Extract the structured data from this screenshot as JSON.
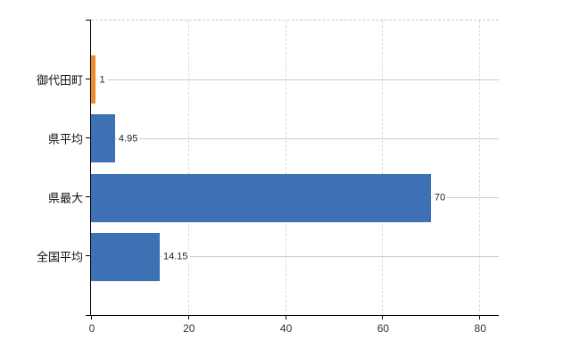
{
  "chart_data": {
    "type": "bar",
    "orientation": "horizontal",
    "title": "",
    "xlabel": "",
    "ylabel": "",
    "categories": [
      "御代田町",
      "県平均",
      "県最大",
      "全国平均"
    ],
    "values": [
      1,
      4.95,
      70,
      14.15
    ],
    "value_labels": [
      "1",
      "4.95",
      "70",
      "14.15"
    ],
    "bar_colors": [
      "#EE8C2B",
      "#3E70B4",
      "#3E70B4",
      "#3E70B4"
    ],
    "x_ticks": [
      0,
      20,
      40,
      60,
      80
    ],
    "x_tick_labels": [
      "0",
      "20",
      "40",
      "60",
      "80"
    ],
    "xlim": [
      0,
      84
    ],
    "grid": "vertical-dashed-gray, horizontal-row-lines",
    "legend": "none",
    "accent_colors": {
      "highlight_orange": "#EE8C2B",
      "series_blue": "#3E70B4",
      "axis_black": "#000000",
      "gridline_gray": "#d9d9d9",
      "rowline_gray": "#cccccc"
    }
  }
}
